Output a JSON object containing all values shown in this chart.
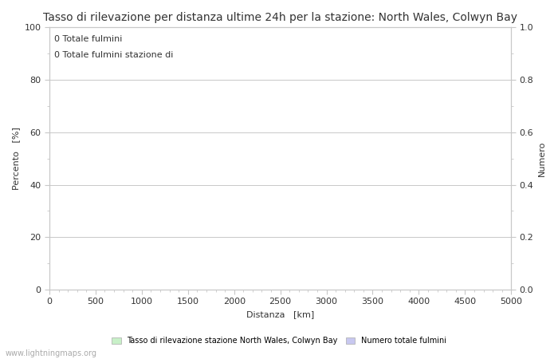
{
  "title": "Tasso di rilevazione per distanza ultime 24h per la stazione: North Wales, Colwyn Bay",
  "annotation_line1": "0 Totale fulmini",
  "annotation_line2": "0 Totale fulmini stazione di",
  "xlabel": "Distanza   [km]",
  "ylabel_left": "Percento   [%]",
  "ylabel_right": "Numero",
  "xlim": [
    0,
    5000
  ],
  "ylim_left": [
    0,
    100
  ],
  "ylim_right": [
    0.0,
    1.0
  ],
  "xticks_major": [
    0,
    500,
    1000,
    1500,
    2000,
    2500,
    3000,
    3500,
    4000,
    4500,
    5000
  ],
  "yticks_left_major": [
    0,
    20,
    40,
    60,
    80,
    100
  ],
  "yticks_left_minor": [
    10,
    30,
    50,
    70,
    90
  ],
  "yticks_right_major": [
    0.0,
    0.2,
    0.4,
    0.6,
    0.8,
    1.0
  ],
  "yticks_right_minor": [
    0.1,
    0.3,
    0.5,
    0.7,
    0.9
  ],
  "yticks_right_labels": [
    "0.0",
    "0.2",
    "0.4",
    "0.6",
    "0.8",
    "1.0"
  ],
  "grid_y_values": [
    20,
    40,
    60,
    80,
    100
  ],
  "legend_label1": "Tasso di rilevazione stazione North Wales, Colwyn Bay",
  "legend_label2": "Numero totale fulmini",
  "legend_color1": "#c8f0c8",
  "legend_color2": "#c8c8f0",
  "watermark": "www.lightningmaps.org",
  "bg_color": "#ffffff",
  "grid_color": "#c8c8c8",
  "spine_color": "#c8c8c8",
  "text_color": "#333333",
  "title_fontsize": 10,
  "label_fontsize": 8,
  "tick_fontsize": 8,
  "annotation_fontsize": 8,
  "watermark_fontsize": 7
}
